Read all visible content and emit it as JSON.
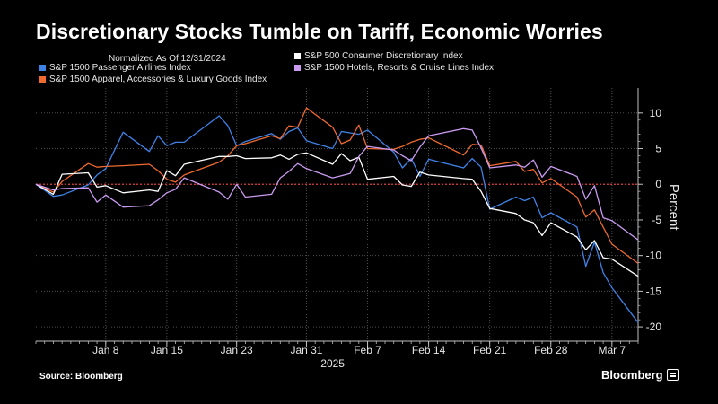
{
  "header": {
    "title": "Discretionary Stocks Tumble on Tariff, Economic Worries",
    "subtitle": "Normalized As Of 12/31/2024"
  },
  "footer": {
    "source": "Source: Bloomberg",
    "brand": "Bloomberg"
  },
  "colors": {
    "background": "#000000",
    "grid": "#4d4d4d",
    "zero_line": "#e0403a",
    "axis_text": "#e6e6e6"
  },
  "chart_data": {
    "type": "line",
    "title": "Discretionary Stocks Tumble on Tariff, Economic Worries",
    "subtitle": "Normalized As Of 12/31/2024",
    "ylabel": "Percent",
    "xlabel": "2025",
    "ylim": [
      -22,
      13.5
    ],
    "yticks": [
      10,
      5,
      0,
      -5,
      -10,
      -15,
      -20
    ],
    "x_start": "2024-12-31",
    "x_end": "2025-03-10",
    "xticks": [
      {
        "date": "2025-01-08",
        "label": "Jan 8"
      },
      {
        "date": "2025-01-15",
        "label": "Jan 15"
      },
      {
        "date": "2025-01-23",
        "label": "Jan 23"
      },
      {
        "date": "2025-01-31",
        "label": "Jan 31"
      },
      {
        "date": "2025-02-07",
        "label": "Feb 7"
      },
      {
        "date": "2025-02-14",
        "label": "Feb 14"
      },
      {
        "date": "2025-02-21",
        "label": "Feb 21"
      },
      {
        "date": "2025-02-28",
        "label": "Feb 28"
      },
      {
        "date": "2025-03-07",
        "label": "Mar 7"
      }
    ],
    "grid": true,
    "reference_line": 0,
    "legend_position": "top",
    "dates": [
      "2024-12-31",
      "2025-01-02",
      "2025-01-03",
      "2025-01-06",
      "2025-01-07",
      "2025-01-08",
      "2025-01-10",
      "2025-01-13",
      "2025-01-14",
      "2025-01-15",
      "2025-01-16",
      "2025-01-17",
      "2025-01-21",
      "2025-01-22",
      "2025-01-23",
      "2025-01-24",
      "2025-01-27",
      "2025-01-28",
      "2025-01-29",
      "2025-01-30",
      "2025-01-31",
      "2025-02-03",
      "2025-02-04",
      "2025-02-05",
      "2025-02-06",
      "2025-02-07",
      "2025-02-10",
      "2025-02-11",
      "2025-02-12",
      "2025-02-13",
      "2025-02-14",
      "2025-02-18",
      "2025-02-19",
      "2025-02-20",
      "2025-02-21",
      "2025-02-24",
      "2025-02-25",
      "2025-02-26",
      "2025-02-27",
      "2025-02-28",
      "2025-03-03",
      "2025-03-04",
      "2025-03-05",
      "2025-03-06",
      "2025-03-07",
      "2025-03-10"
    ],
    "series": [
      {
        "name": "S&P 1500 Passenger Airlines Index",
        "color": "#3f82e6",
        "values": [
          0,
          -1.7,
          -1.5,
          -0.1,
          1.3,
          2.2,
          7.3,
          4.6,
          6.8,
          5.4,
          5.9,
          5.9,
          9.6,
          8.2,
          5.4,
          6.0,
          7.1,
          6.3,
          7.4,
          7.9,
          6.1,
          5.0,
          7.4,
          7.2,
          7.0,
          7.6,
          4.5,
          2.3,
          3.6,
          1.1,
          3.5,
          2.3,
          3.6,
          2.4,
          -3.5,
          -1.8,
          -2.3,
          -1.8,
          -4.7,
          -4.0,
          -6.0,
          -11.5,
          -8.1,
          -12.4,
          -14.5,
          -19.4
        ]
      },
      {
        "name": "S&P 1500 Apparel, Accessories & Luxury Goods Index",
        "color": "#ee6a2f",
        "values": [
          0,
          -1.1,
          0.4,
          2.9,
          2.4,
          2.5,
          2.6,
          2.8,
          1.9,
          0.7,
          0.3,
          1.3,
          3.1,
          4.0,
          5.4,
          5.7,
          6.8,
          6.4,
          8.2,
          8.0,
          10.7,
          8.0,
          5.7,
          6.2,
          8.3,
          5.0,
          4.9,
          5.3,
          5.9,
          6.3,
          6.5,
          4.1,
          5.6,
          5.5,
          2.6,
          3.2,
          1.8,
          2.1,
          0.2,
          0.8,
          -1.8,
          -4.6,
          -3.6,
          -6.0,
          -8.4,
          -11.1
        ]
      },
      {
        "name": "S&P 500 Consumer Discretionary Index",
        "color": "#ffffff",
        "values": [
          0,
          -1.4,
          1.4,
          1.6,
          -0.4,
          -0.2,
          -1.2,
          -0.8,
          -1.0,
          1.9,
          1.2,
          2.8,
          3.9,
          3.9,
          4.0,
          3.6,
          3.7,
          4.1,
          3.5,
          4.2,
          4.4,
          2.8,
          4.3,
          3.3,
          3.8,
          0.7,
          1.1,
          -0.1,
          -0.3,
          1.7,
          1.3,
          0.8,
          0.7,
          -1.0,
          -3.4,
          -4.1,
          -5.0,
          -5.4,
          -7.2,
          -5.4,
          -7.4,
          -9.2,
          -7.9,
          -10.3,
          -10.5,
          -12.9
        ]
      },
      {
        "name": "S&P 1500 Hotels, Resorts & Cruise Lines Index",
        "color": "#c99af0",
        "values": [
          0,
          -0.8,
          -0.6,
          -0.5,
          -2.5,
          -1.5,
          -3.2,
          -3.0,
          -2.2,
          -1.2,
          -0.7,
          0.9,
          -1.1,
          -2.1,
          0.0,
          -1.8,
          -1.4,
          0.9,
          1.8,
          2.9,
          2.2,
          0.9,
          1.2,
          1.5,
          3.9,
          5.3,
          4.8,
          4.0,
          3.3,
          5.2,
          6.8,
          7.8,
          7.6,
          5.1,
          2.3,
          2.7,
          2.4,
          3.4,
          1.0,
          2.5,
          1.1,
          -2.1,
          -0.2,
          -4.7,
          -5.1,
          -7.8
        ]
      }
    ]
  }
}
